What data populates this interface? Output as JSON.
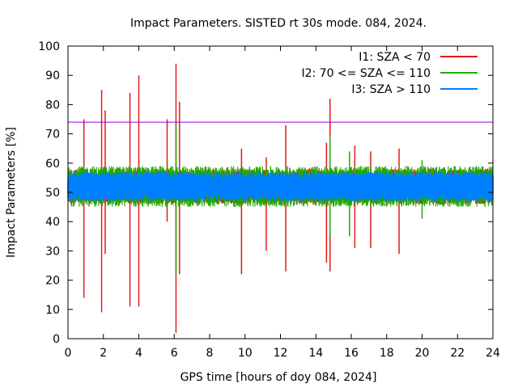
{
  "chart_data": {
    "type": "line",
    "title": "Impact Parameters. SISTED rt 30s mode. 084, 2024.",
    "xlabel": "GPS time [hours of doy 084, 2024]",
    "ylabel": "Impact Parameters [%]",
    "xlim": [
      0,
      24
    ],
    "ylim": [
      0,
      100
    ],
    "xticks": [
      0,
      2,
      4,
      6,
      8,
      10,
      12,
      14,
      16,
      18,
      20,
      22,
      24
    ],
    "yticks": [
      0,
      10,
      20,
      30,
      40,
      50,
      60,
      70,
      80,
      90,
      100
    ],
    "legend_position": "top-right",
    "reference_line": {
      "y": 74,
      "color": "#9400d3"
    },
    "series": [
      {
        "name": "I1: SZA < 70",
        "color": "#e41a1c",
        "baseline": 52,
        "noise_low": 46,
        "noise_high": 58,
        "spikes": [
          {
            "x": 0.9,
            "min": 14,
            "max": 75
          },
          {
            "x": 1.9,
            "min": 9,
            "max": 85
          },
          {
            "x": 2.1,
            "min": 29,
            "max": 78
          },
          {
            "x": 3.5,
            "min": 11,
            "max": 84
          },
          {
            "x": 4.0,
            "min": 11,
            "max": 90
          },
          {
            "x": 5.6,
            "min": 40,
            "max": 75
          },
          {
            "x": 6.1,
            "min": 2,
            "max": 94
          },
          {
            "x": 6.3,
            "min": 22,
            "max": 81
          },
          {
            "x": 9.8,
            "min": 22,
            "max": 65
          },
          {
            "x": 11.2,
            "min": 30,
            "max": 62
          },
          {
            "x": 12.3,
            "min": 23,
            "max": 73
          },
          {
            "x": 14.6,
            "min": 26,
            "max": 67
          },
          {
            "x": 14.8,
            "min": 23,
            "max": 82
          },
          {
            "x": 16.2,
            "min": 31,
            "max": 66
          },
          {
            "x": 17.1,
            "min": 31,
            "max": 64
          },
          {
            "x": 18.7,
            "min": 29,
            "max": 65
          }
        ]
      },
      {
        "name": "I2: 70 <= SZA <= 110",
        "color": "#1faa00",
        "baseline": 52,
        "noise_low": 45,
        "noise_high": 59,
        "spikes": [
          {
            "x": 6.1,
            "min": 22,
            "max": 73
          },
          {
            "x": 14.8,
            "min": 35,
            "max": 69
          },
          {
            "x": 15.9,
            "min": 35,
            "max": 64
          },
          {
            "x": 20.0,
            "min": 41,
            "max": 61
          }
        ]
      },
      {
        "name": "I3: SZA > 110",
        "color": "#0080ff",
        "baseline": 52,
        "noise_low": 47,
        "noise_high": 57,
        "spikes": []
      }
    ]
  }
}
